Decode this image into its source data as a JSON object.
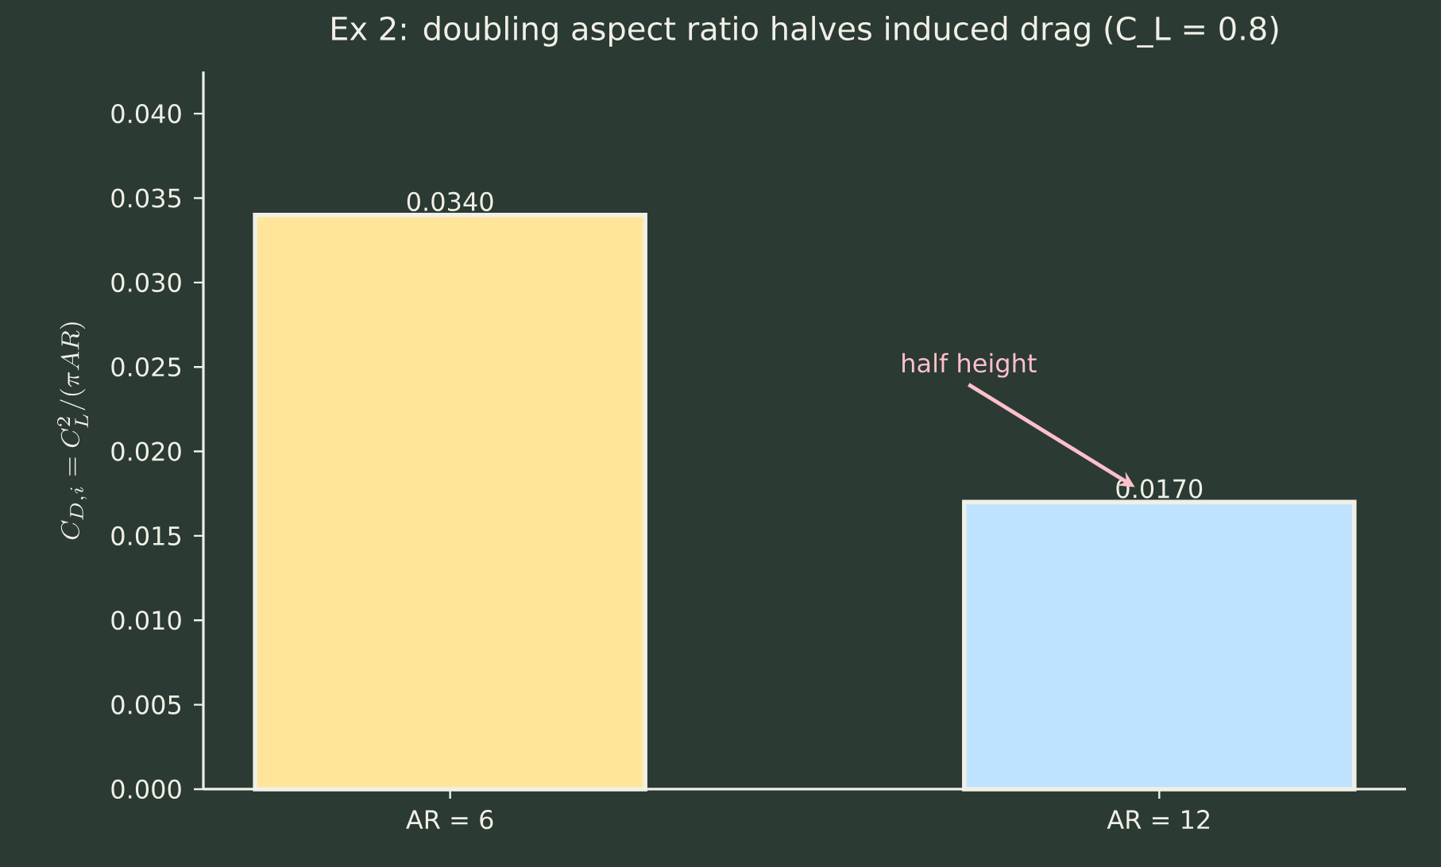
{
  "chart_data": {
    "type": "bar",
    "title": "Ex 2: doubling aspect ratio halves induced drag  (C_L = 0.8)",
    "ylabel": "C_{D,i} = C_L^2/(\\pi AR)",
    "categories": [
      "AR = 6",
      "AR = 12"
    ],
    "values": [
      0.034,
      0.017
    ],
    "colors": [
      "#ffe59a",
      "#bfe3ff"
    ],
    "value_labels": [
      "0.0340",
      "0.0170"
    ],
    "ylim": [
      0,
      0.0425
    ],
    "yticks": [
      {
        "value": 0,
        "label": "0.000"
      },
      {
        "value": 0.005,
        "label": "0.005"
      },
      {
        "value": 0.01,
        "label": "0.010"
      },
      {
        "value": 0.015,
        "label": "0.015"
      },
      {
        "value": 0.02,
        "label": "0.020"
      },
      {
        "value": 0.025,
        "label": "0.025"
      },
      {
        "value": 0.03,
        "label": "0.030"
      },
      {
        "value": 0.035,
        "label": "0.035"
      },
      {
        "value": 0.04,
        "label": "0.040"
      }
    ],
    "annotations": [
      "half height"
    ],
    "grid": false
  }
}
